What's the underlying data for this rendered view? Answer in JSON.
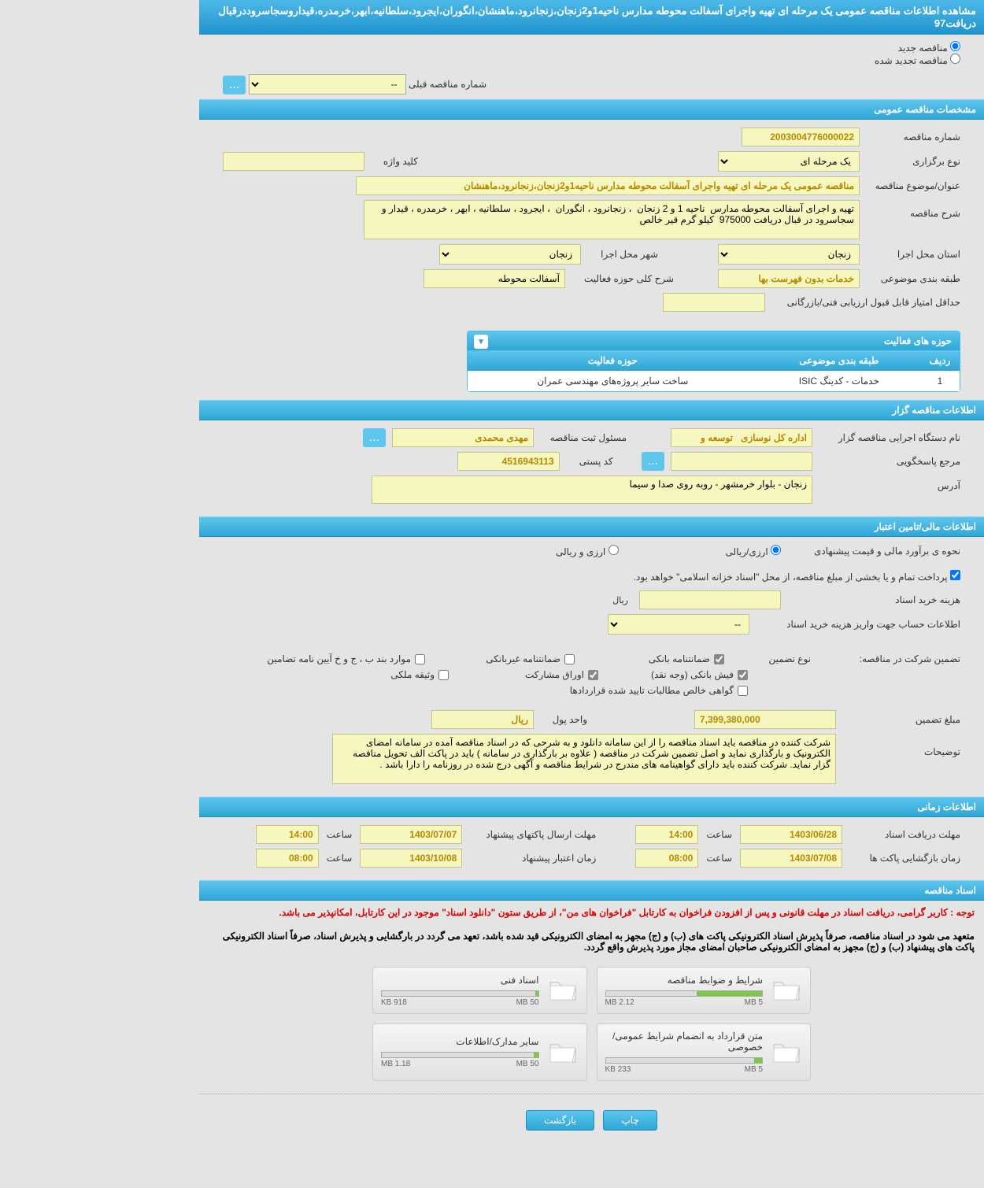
{
  "pageTitle": "مشاهده اطلاعات مناقصه عمومی یک مرحله ای تهیه واجرای آسفالت محوطه مدارس ناحیه1و2زنجان،زنجانرود،ماهنشان،انگوران،ایجرود،سلطانیه،ابهر،خرمدره،قیداروسجاسروددرقبال دریافت97",
  "radios": {
    "new": "مناقصه جدید",
    "renewed": "مناقصه تجدید شده"
  },
  "prevTender": {
    "label": "شماره مناقصه قبلی",
    "value": "--"
  },
  "sections": {
    "general": "مشخصات مناقصه عمومی",
    "tenderer": "اطلاعات مناقصه گزار",
    "financial": "اطلاعات مالی/تامین اعتبار",
    "timing": "اطلاعات زمانی",
    "docs": "اسناد مناقصه"
  },
  "general": {
    "tenderNo": {
      "label": "شماره مناقصه",
      "value": "2003004776000022"
    },
    "holdType": {
      "label": "نوع برگزاری",
      "value": "یک مرحله ای"
    },
    "keyword": {
      "label": "کلید واژه",
      "value": ""
    },
    "subject": {
      "label": "عنوان/موضوع مناقصه",
      "value": "مناقصه عمومی یک مرحله ای تهیه واجرای آسفالت محوطه مدارس ناحیه1و2زنجان،زنجانرود،ماهنشان"
    },
    "desc": {
      "label": "شرح مناقصه",
      "value": "تهیه و اجرای آسفالت محوطه مدارس  ناحیه 1 و 2 زنجان  ، زنجانرود ، انگوران  ، ایجرود ، سلطانیه ، ابهر ، خرمدره ، قیدار و سجاسرود در قبال دریافت 975000  کیلو گرم قیر خالص"
    },
    "province": {
      "label": "استان محل اجرا",
      "value": "زنجان"
    },
    "city": {
      "label": "شهر محل اجرا",
      "value": "زنجان"
    },
    "category": {
      "label": "طبقه بندی موضوعی",
      "value": "خدمات بدون فهرست بها"
    },
    "activityDesc": {
      "label": "شرح کلی حوزه فعالیت",
      "value": "آسفالت محوطه"
    },
    "minScore": {
      "label": "حداقل امتیاز قابل قبول ارزیابی فنی/بازرگانی",
      "value": ""
    }
  },
  "activity": {
    "header": "حوزه های فعالیت",
    "cols": {
      "row": "ردیف",
      "cat": "طبقه بندی موضوعی",
      "field": "حوزه فعالیت"
    },
    "rows": [
      {
        "row": "1",
        "cat": "خدمات - کدینگ ISIC",
        "field": "ساخت سایر پروژه‌های مهندسی عمران"
      }
    ]
  },
  "tenderer": {
    "org": {
      "label": "نام دستگاه اجرایی مناقصه گزار",
      "value": "اداره کل نوسازی   توسعه و"
    },
    "responsible": {
      "label": "مسئول ثبت مناقصه",
      "value": "مهدی محمدی"
    },
    "respRef": {
      "label": "مرجع پاسخگویی",
      "value": ""
    },
    "postal": {
      "label": "کد پستی",
      "value": "4516943113"
    },
    "address": {
      "label": "آدرس",
      "value": "زنجان - بلوار خرمشهر - روبه روی صدا و سیما"
    }
  },
  "financial": {
    "estimateMethod": {
      "label": "نحوه ی برآورد مالی و قیمت پیشنهادی",
      "opt1": "ارزی/ریالی",
      "opt2": "ارزی و ریالی"
    },
    "paymentNote": "پرداخت تمام و یا بخشی از مبلغ مناقصه، از محل \"اسناد خزانه اسلامی\" خواهد بود.",
    "docCost": {
      "label": "هزینه خرید اسناد",
      "unit": "ریال",
      "value": ""
    },
    "depositAccount": {
      "label": "اطلاعات حساب جهت واریز هزینه خرید اسناد",
      "value": "--"
    },
    "guarantee": {
      "label": "تضمین شرکت در مناقصه:",
      "typeLabel": "نوع تضمین",
      "opts": {
        "bank": "ضمانتنامه بانکی",
        "nonbank": "ضمانتنامه غیربانکی",
        "terms": "موارد بند ب ، ج و خ آیین نامه تضامین",
        "cash": "فیش بانکی (وجه نقد)",
        "bonds": "اوراق مشارکت",
        "property": "وثیقه ملکی",
        "receivables": "گواهی خالص مطالبات تایید شده قراردادها"
      }
    },
    "amount": {
      "label": "مبلغ تضمین",
      "value": "7,399,380,000"
    },
    "currency": {
      "label": "واحد پول",
      "value": "ریال"
    },
    "notes": {
      "label": "توضیحات",
      "value": "شرکت کننده در مناقصه باید اسناد مناقصه را از این سامانه دانلود و به شرحی که در اسناد مناقصه آمده در سامانه امضای الکترونیک و بارگذاری نماید و اصل تضمین شرکت در مناقصه ( علاوه بر بارگذاری در سامانه ) باید در پاکت الف تحویل مناقصه گزار نماید. شرکت کننده باید دارای گواهینامه های مندرج در شرایط مناقصه و آگهی درج شده در روزنامه را دارا باشد ."
    }
  },
  "timing": {
    "receiveDeadline": {
      "label": "مهلت دریافت اسناد",
      "date": "1403/06/28",
      "timeLabel": "ساعت",
      "time": "14:00"
    },
    "submitDeadline": {
      "label": "مهلت ارسال پاکتهای پیشنهاد",
      "date": "1403/07/07",
      "timeLabel": "ساعت",
      "time": "14:00"
    },
    "openTime": {
      "label": "زمان بازگشایی پاکت ها",
      "date": "1403/07/08",
      "timeLabel": "ساعت",
      "time": "08:00"
    },
    "validTime": {
      "label": "زمان اعتبار پیشنهاد",
      "date": "1403/10/08",
      "timeLabel": "ساعت",
      "time": "08:00"
    }
  },
  "notices": {
    "red": "توجه : کاربر گرامی، دریافت اسناد در مهلت قانونی و پس از افزودن فراخوان به کارتابل \"فراخوان های من\"، از طریق ستون \"دانلود اسناد\" موجود در این کارتابل، امکانپذیر می باشد.",
    "black": "متعهد می شود در اسناد مناقصه، صرفاً پذیرش اسناد الکترونیکی پاکت های (ب) و (ج) مجهز به امضای الکترونیکی قید شده باشد، تعهد می گردد در بارگشایی و پذیرش اسناد، صرفاً اسناد الکترونیکی پاکت های پیشنهاد (ب) و (ج) مجهز به امضای الکترونیکی صاحبان امضای مجاز مورد پذیرش واقع گردد."
  },
  "docs": [
    {
      "title": "شرایط و ضوابط مناقصه",
      "used": "2.12 MB",
      "total": "5 MB",
      "pct": 42
    },
    {
      "title": "اسناد فنی",
      "used": "918 KB",
      "total": "50 MB",
      "pct": 2
    },
    {
      "title": "متن قرارداد به انضمام شرایط عمومی/خصوصی",
      "used": "233 KB",
      "total": "5 MB",
      "pct": 5
    },
    {
      "title": "سایر مدارک/اطلاعات",
      "used": "1.18 MB",
      "total": "50 MB",
      "pct": 3
    }
  ],
  "buttons": {
    "print": "چاپ",
    "back": "بازگشت"
  },
  "more": "..."
}
